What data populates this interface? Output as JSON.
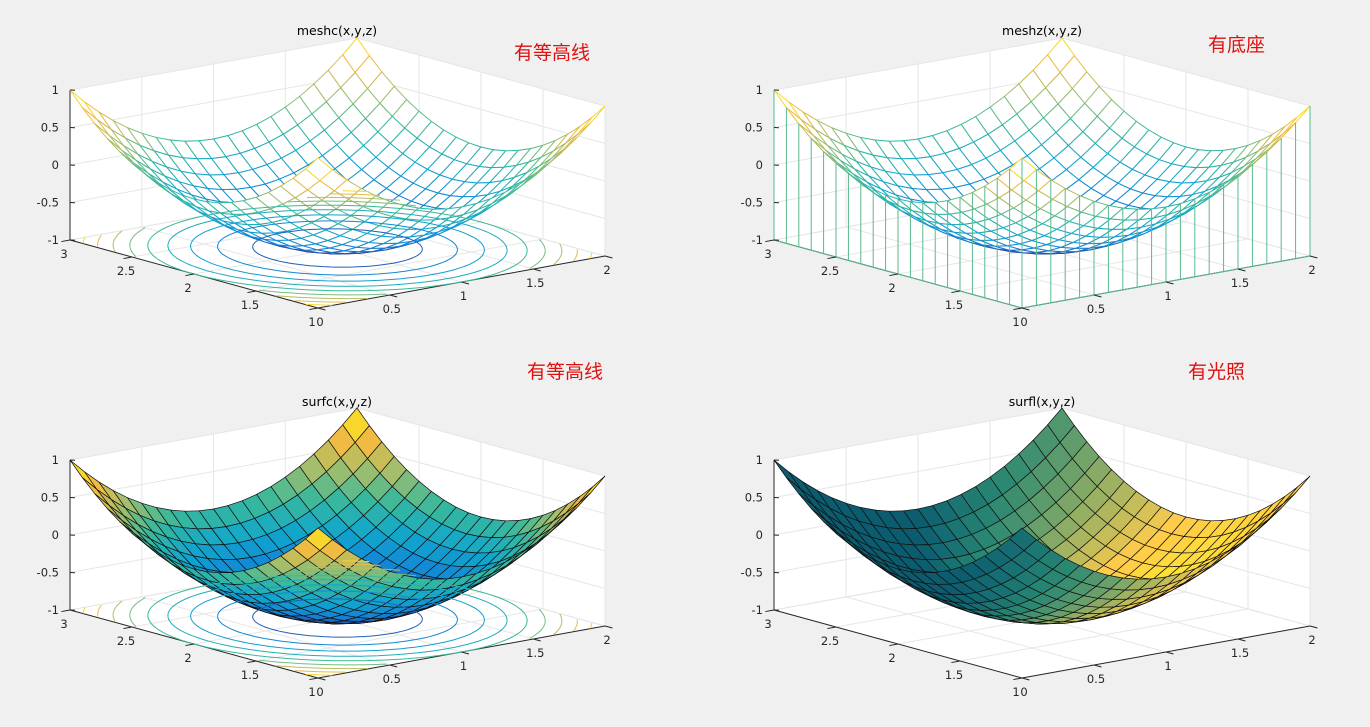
{
  "figure": {
    "background": "#f0f0f0",
    "annotation_color": "#e01010"
  },
  "chart_data": [
    {
      "type": "mesh3d-with-contours",
      "function": "z = (x - 1)^2 + (y - 2)^2 - 1",
      "title": "meshc(x,y,z)",
      "annotation": "有等高线",
      "x_range": [
        0,
        2
      ],
      "y_range": [
        1,
        3
      ],
      "zlim": [
        -1,
        1
      ],
      "grid_steps": 20,
      "x_ticks": [
        "0",
        "0.5",
        "1",
        "1.5",
        "2"
      ],
      "y_ticks": [
        "1",
        "1.5",
        "2",
        "2.5",
        "3"
      ],
      "z_ticks": [
        "-1",
        "-0.5",
        "0",
        "0.5",
        "1"
      ],
      "contour_levels": [
        -0.8,
        -0.6,
        -0.4,
        -0.2,
        0,
        0.2,
        0.4,
        0.6,
        0.8
      ],
      "colormap": "parula"
    },
    {
      "type": "mesh3d-with-curtain",
      "function": "z = (x - 1)^2 + (y - 2)^2 - 1",
      "title": "meshz(x,y,z)",
      "annotation": "有底座",
      "x_range": [
        0,
        2
      ],
      "y_range": [
        1,
        3
      ],
      "zlim": [
        -1,
        1
      ],
      "grid_steps": 20,
      "x_ticks": [
        "0",
        "0.5",
        "1",
        "1.5",
        "2"
      ],
      "y_ticks": [
        "1",
        "1.5",
        "2",
        "2.5",
        "3"
      ],
      "z_ticks": [
        "-1",
        "-0.5",
        "0",
        "0.5",
        "1"
      ],
      "colormap": "parula"
    },
    {
      "type": "surface3d-with-contours",
      "function": "z = (x - 1)^2 + (y - 2)^2 - 1",
      "title": "surfc(x,y,z)",
      "annotation": "有等高线",
      "x_range": [
        0,
        2
      ],
      "y_range": [
        1,
        3
      ],
      "zlim": [
        -1,
        1
      ],
      "grid_steps": 20,
      "x_ticks": [
        "0",
        "0.5",
        "1",
        "1.5",
        "2"
      ],
      "y_ticks": [
        "1",
        "1.5",
        "2",
        "2.5",
        "3"
      ],
      "z_ticks": [
        "-1",
        "-0.5",
        "0",
        "0.5",
        "1"
      ],
      "contour_levels": [
        -0.8,
        -0.6,
        -0.4,
        -0.2,
        0,
        0.2,
        0.4,
        0.6,
        0.8
      ],
      "colormap": "parula"
    },
    {
      "type": "surface3d-lit",
      "function": "z = (x - 1)^2 + (y - 2)^2 - 1",
      "title": "surfl(x,y,z)",
      "annotation": "有光照",
      "x_range": [
        0,
        2
      ],
      "y_range": [
        1,
        3
      ],
      "zlim": [
        -1,
        1
      ],
      "grid_steps": 20,
      "x_ticks": [
        "0",
        "0.5",
        "1",
        "1.5",
        "2"
      ],
      "y_ticks": [
        "1",
        "1.5",
        "2",
        "2.5",
        "3"
      ],
      "z_ticks": [
        "-1",
        "-0.5",
        "0",
        "0.5",
        "1"
      ],
      "colormap": "parula"
    }
  ]
}
